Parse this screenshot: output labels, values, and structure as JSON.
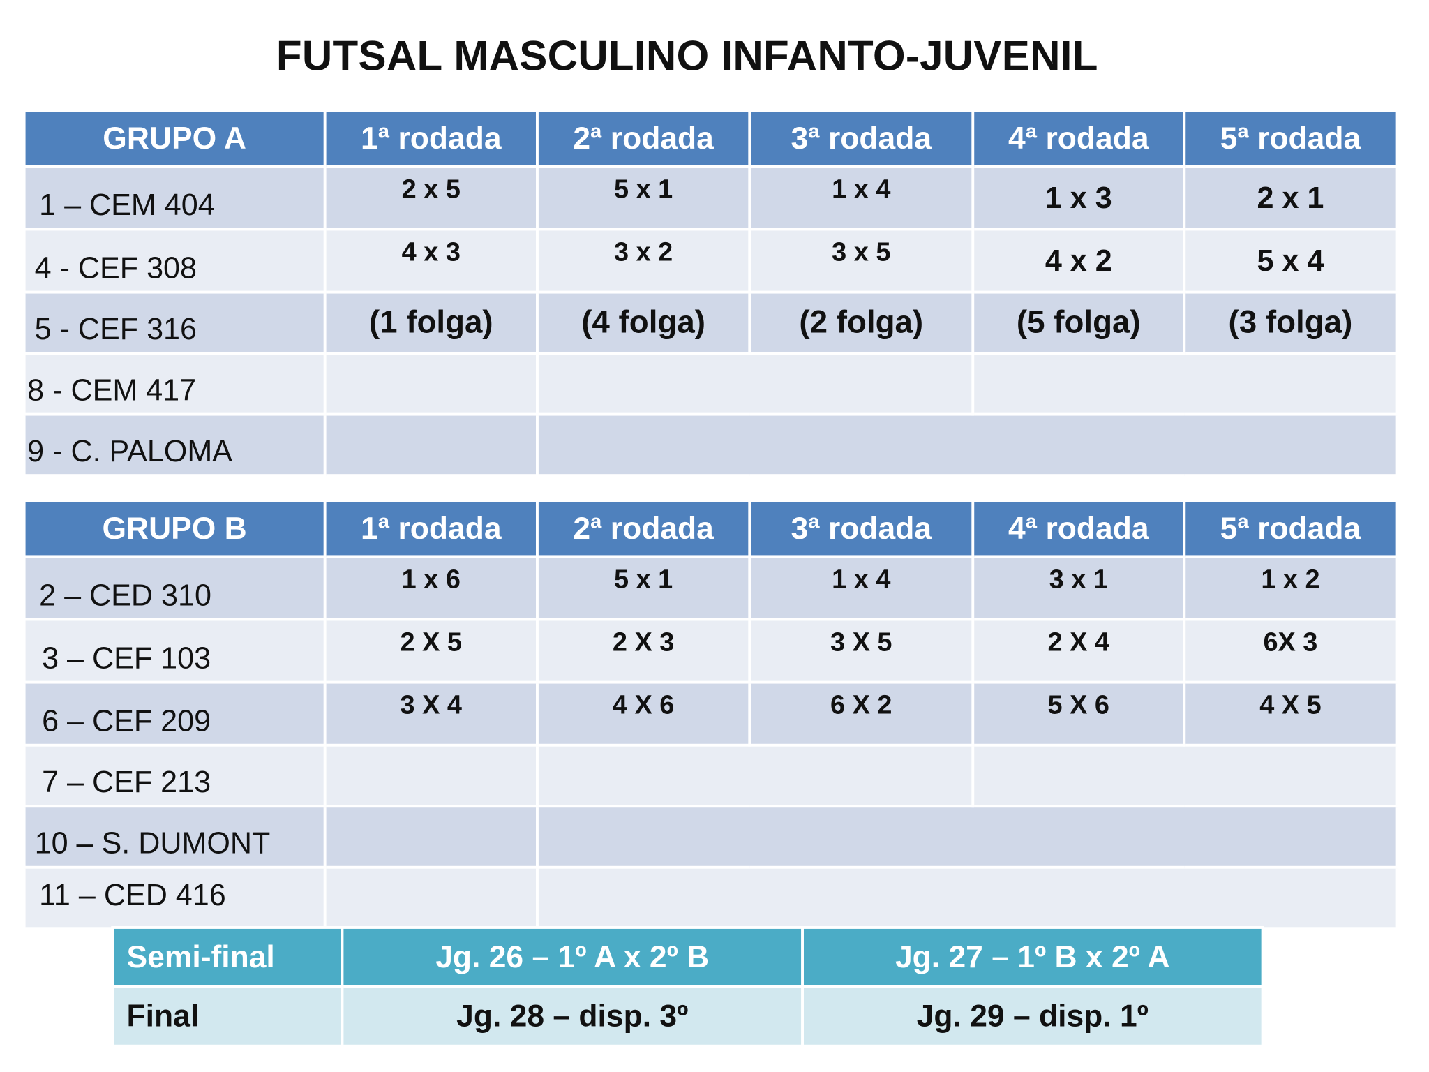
{
  "title": "FUTSAL MASCULINO  INFANTO-JUVENIL",
  "colors": {
    "header_blue": "#4f81bd",
    "row_dark": "#d0d8e8",
    "row_light": "#e9edf4",
    "final_header": "#4bacc6",
    "final_row": "#d2e8ef"
  },
  "group_a": {
    "header": "GRUPO A",
    "rounds": [
      "1ª rodada",
      "2ª rodada",
      "3ª rodada",
      "4ª rodada",
      "5ª rodada"
    ],
    "teams": [
      "1 – CEM 404",
      "4 - CEF 308",
      "5 - CEF 316",
      "8 - CEM 417",
      "9 - C. PALOMA"
    ],
    "games": [
      [
        "2 x 5",
        "5 x 1",
        "1 x 4",
        "1 x 3",
        "2 x 1"
      ],
      [
        "4 x 3",
        "3 x 2",
        "3 x 5",
        "4 x 2",
        "5 x 4"
      ],
      [
        "(1 folga)",
        "(4 folga)",
        "(2 folga)",
        "(5 folga)",
        "(3 folga)"
      ]
    ]
  },
  "group_b": {
    "header": "GRUPO B",
    "rounds": [
      "1ª rodada",
      "2ª rodada",
      "3ª rodada",
      "4ª rodada",
      "5ª rodada"
    ],
    "teams": [
      "2 – CED 310",
      "3 – CEF 103",
      "6 – CEF 209",
      "7 – CEF 213",
      "10 – S. DUMONT",
      "11 – CED 416"
    ],
    "games": [
      [
        "1 x 6",
        "5 x 1",
        "1 x 4",
        "3 x 1",
        "1 x 2"
      ],
      [
        "2 X 5",
        "2 X 3",
        "3 X 5",
        "2 X 4",
        "6X 3"
      ],
      [
        "3 X 4",
        "4 X 6",
        "6 X 2",
        "5 X 6",
        "4 X 5"
      ]
    ]
  },
  "finals": {
    "semi": {
      "label": "Semi-final",
      "game1": "Jg. 26 – 1º A x 2º B",
      "game2": "Jg. 27 – 1º B x 2º A"
    },
    "final": {
      "label": "Final",
      "game1": "Jg. 28 – disp. 3º",
      "game2": "Jg. 29 – disp. 1º"
    }
  }
}
